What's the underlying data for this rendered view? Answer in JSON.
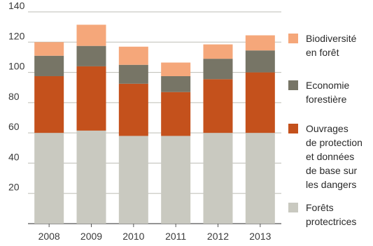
{
  "chart_data": {
    "type": "bar",
    "stacked": true,
    "categories": [
      "2008",
      "2009",
      "2010",
      "2011",
      "2012",
      "2013"
    ],
    "series": [
      {
        "name": "Forêts protectrices",
        "legend_lines": [
          "Forêts",
          "protectrices"
        ],
        "color": "#c9c9c0",
        "values": [
          60,
          61.5,
          58,
          58,
          60,
          60
        ]
      },
      {
        "name": "Ouvrages de protection et données de base sur les dangers",
        "legend_lines": [
          "Ouvrages",
          "de protection",
          "et données",
          "de base sur",
          "les dangers"
        ],
        "color": "#c4511c",
        "values": [
          37.5,
          42.5,
          34.5,
          29,
          35.5,
          40
        ]
      },
      {
        "name": "Economie forestière",
        "legend_lines": [
          "Economie",
          "forestière"
        ],
        "color": "#777566",
        "values": [
          13.5,
          13.5,
          12.5,
          10.5,
          13.5,
          14.5
        ]
      },
      {
        "name": "Biodiversité en forêt",
        "legend_lines": [
          "Biodiversité",
          "en forêt"
        ],
        "color": "#f5a77a",
        "values": [
          9,
          14,
          12,
          9,
          9.5,
          10
        ]
      }
    ],
    "ylim": [
      0,
      140
    ],
    "yticks": [
      20,
      40,
      60,
      80,
      100,
      120,
      140
    ],
    "grid": true,
    "legend_position": "right",
    "title": "",
    "xlabel": "",
    "ylabel": ""
  }
}
